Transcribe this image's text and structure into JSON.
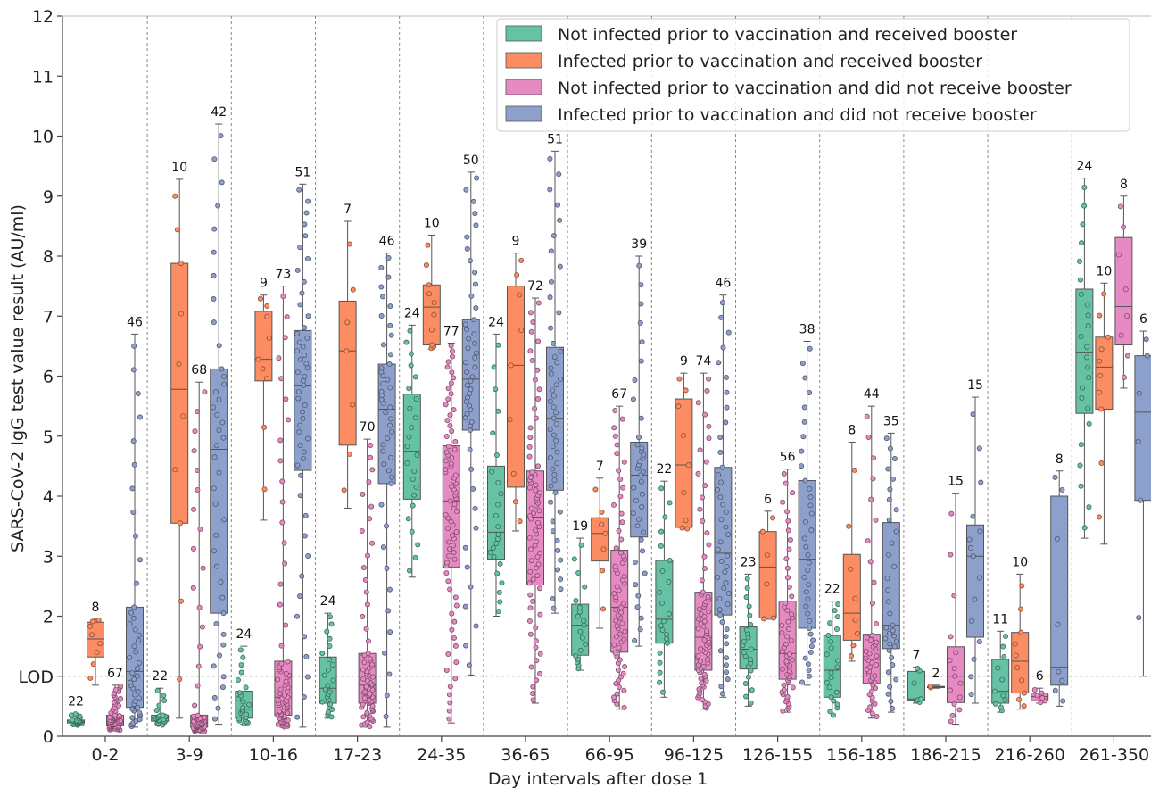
{
  "chart_data": {
    "type": "box",
    "title": "",
    "xlabel": "Day intervals after dose 1",
    "ylabel": "SARS-CoV-2 IgG test value result (AU/ml)",
    "ylim": [
      0,
      12
    ],
    "yticks": [
      0,
      2,
      3,
      4,
      5,
      6,
      7,
      8,
      9,
      10,
      11,
      12
    ],
    "lod": {
      "value": 1.0,
      "label": "LOD"
    },
    "grid": "vertical dashed separators between intervals, horizontal dashed line at LOD",
    "legend_position": "top-right",
    "categories": [
      "0-2",
      "3-9",
      "10-16",
      "17-23",
      "24-35",
      "36-65",
      "66-95",
      "96-125",
      "126-155",
      "156-185",
      "186-215",
      "216-260",
      "261-350"
    ],
    "series": [
      {
        "name": "Not infected prior to vaccination and received booster",
        "color": "#66c2a5",
        "n": [
          22,
          22,
          24,
          24,
          24,
          24,
          19,
          22,
          23,
          22,
          7,
          11,
          24
        ],
        "boxes": [
          [
            0.18,
            0.22,
            0.25,
            0.27,
            0.38
          ],
          [
            0.18,
            0.25,
            0.3,
            0.35,
            0.8
          ],
          [
            0.2,
            0.3,
            0.45,
            0.75,
            1.5
          ],
          [
            0.3,
            0.55,
            0.8,
            1.32,
            2.05
          ],
          [
            2.65,
            3.95,
            4.75,
            5.7,
            6.85
          ],
          [
            2.0,
            2.95,
            3.4,
            4.5,
            6.7
          ],
          [
            1.1,
            1.35,
            1.85,
            2.2,
            3.3
          ],
          [
            0.65,
            1.55,
            1.95,
            2.93,
            4.25
          ],
          [
            0.5,
            1.12,
            1.45,
            1.82,
            2.7
          ],
          [
            0.32,
            0.65,
            1.1,
            1.68,
            2.25
          ],
          [
            0.55,
            0.6,
            0.62,
            1.08,
            1.15
          ],
          [
            0.4,
            0.55,
            0.75,
            1.28,
            1.75
          ],
          [
            3.3,
            5.38,
            6.4,
            7.45,
            9.3
          ]
        ]
      },
      {
        "name": "Infected prior to vaccination and received booster",
        "color": "#fc8d62",
        "n": [
          8,
          10,
          9,
          7,
          10,
          9,
          7,
          9,
          6,
          8,
          2,
          10,
          10
        ],
        "boxes": [
          [
            0.85,
            1.32,
            1.62,
            1.9,
            1.95
          ],
          [
            0.3,
            3.55,
            5.78,
            7.88,
            9.28
          ],
          [
            3.6,
            5.92,
            6.28,
            7.08,
            7.35
          ],
          [
            3.8,
            4.85,
            6.42,
            7.25,
            8.58
          ],
          [
            6.45,
            6.52,
            7.15,
            7.52,
            8.35
          ],
          [
            3.42,
            4.15,
            6.18,
            7.5,
            8.05
          ],
          [
            1.8,
            2.92,
            3.38,
            3.64,
            4.3
          ],
          [
            3.45,
            3.48,
            4.52,
            5.62,
            6.05
          ],
          [
            1.95,
            1.97,
            2.82,
            3.41,
            3.75
          ],
          [
            1.25,
            1.6,
            2.05,
            3.03,
            4.9
          ],
          [
            0.8,
            0.81,
            0.82,
            0.83,
            0.85
          ],
          [
            0.45,
            0.72,
            1.25,
            1.73,
            2.7
          ],
          [
            3.2,
            5.45,
            6.15,
            6.65,
            7.55
          ]
        ]
      },
      {
        "name": "Not infected prior to vaccination and did not receive booster",
        "color": "#e78ac3",
        "n": [
          67,
          68,
          73,
          70,
          77,
          72,
          67,
          74,
          56,
          44,
          15,
          6,
          8
        ],
        "boxes": [
          [
            0.1,
            0.18,
            0.25,
            0.35,
            0.85
          ],
          [
            0.08,
            0.15,
            0.22,
            0.35,
            5.9
          ],
          [
            0.15,
            0.35,
            0.65,
            1.25,
            7.5
          ],
          [
            0.15,
            0.55,
            0.85,
            1.38,
            4.95
          ],
          [
            0.22,
            2.82,
            3.92,
            4.84,
            6.55
          ],
          [
            0.55,
            2.52,
            3.65,
            4.42,
            7.3
          ],
          [
            0.45,
            1.4,
            2.15,
            3.1,
            5.5
          ],
          [
            0.45,
            1.1,
            1.65,
            2.4,
            6.05
          ],
          [
            0.4,
            0.95,
            1.38,
            2.25,
            4.45
          ],
          [
            0.3,
            0.88,
            1.28,
            1.7,
            5.5
          ],
          [
            0.2,
            0.56,
            1.0,
            1.49,
            4.05
          ],
          [
            0.55,
            0.59,
            0.66,
            0.72,
            0.8
          ],
          [
            5.8,
            6.52,
            7.16,
            8.31,
            9.0
          ]
        ]
      },
      {
        "name": "Infected prior to vaccination and did not receive booster",
        "color": "#8da0cb",
        "n": [
          46,
          42,
          51,
          46,
          50,
          51,
          39,
          46,
          38,
          35,
          15,
          8,
          6
        ],
        "boxes": [
          [
            0.15,
            0.48,
            1.08,
            2.15,
            6.7
          ],
          [
            0.2,
            2.05,
            4.78,
            6.12,
            10.2
          ],
          [
            0.15,
            4.43,
            5.85,
            6.76,
            9.2
          ],
          [
            0.15,
            4.21,
            5.45,
            6.2,
            8.05
          ],
          [
            1.02,
            5.1,
            5.95,
            6.94,
            9.4
          ],
          [
            2.05,
            4.1,
            5.3,
            6.48,
            9.75
          ],
          [
            1.5,
            3.32,
            4.35,
            4.9,
            8.0
          ],
          [
            0.65,
            2.02,
            3.05,
            4.48,
            7.35
          ],
          [
            0.85,
            1.8,
            2.95,
            4.26,
            6.58
          ],
          [
            0.4,
            1.46,
            1.85,
            3.56,
            5.05
          ],
          [
            0.55,
            1.65,
            3.0,
            3.52,
            5.65
          ],
          [
            0.5,
            0.85,
            1.15,
            4.0,
            4.42
          ],
          [
            1.0,
            3.93,
            5.4,
            6.34,
            6.75
          ]
        ]
      }
    ]
  }
}
